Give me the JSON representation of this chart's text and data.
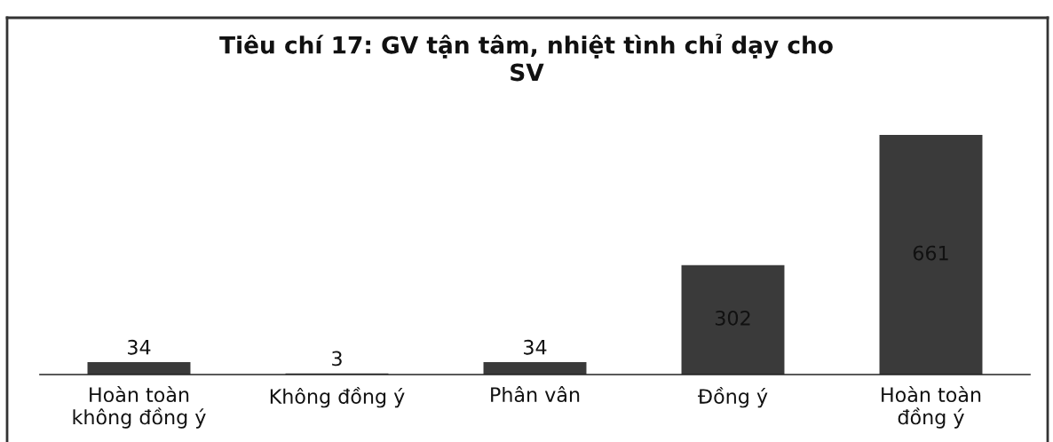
{
  "chart_data": {
    "type": "bar",
    "title": "Tiêu chí 17: GV tận tâm, nhiệt tình chỉ dạy cho\nSV",
    "categories": [
      "Hoàn toàn\nkhông đồng ý",
      "Không đồng ý",
      "Phân vân",
      "Đồng ý",
      "Hoàn toàn\nđồng ý"
    ],
    "values": [
      34,
      3,
      34,
      302,
      661
    ],
    "color": "#3a3a3a",
    "data_labels": true,
    "tick_labels": "x"
  }
}
